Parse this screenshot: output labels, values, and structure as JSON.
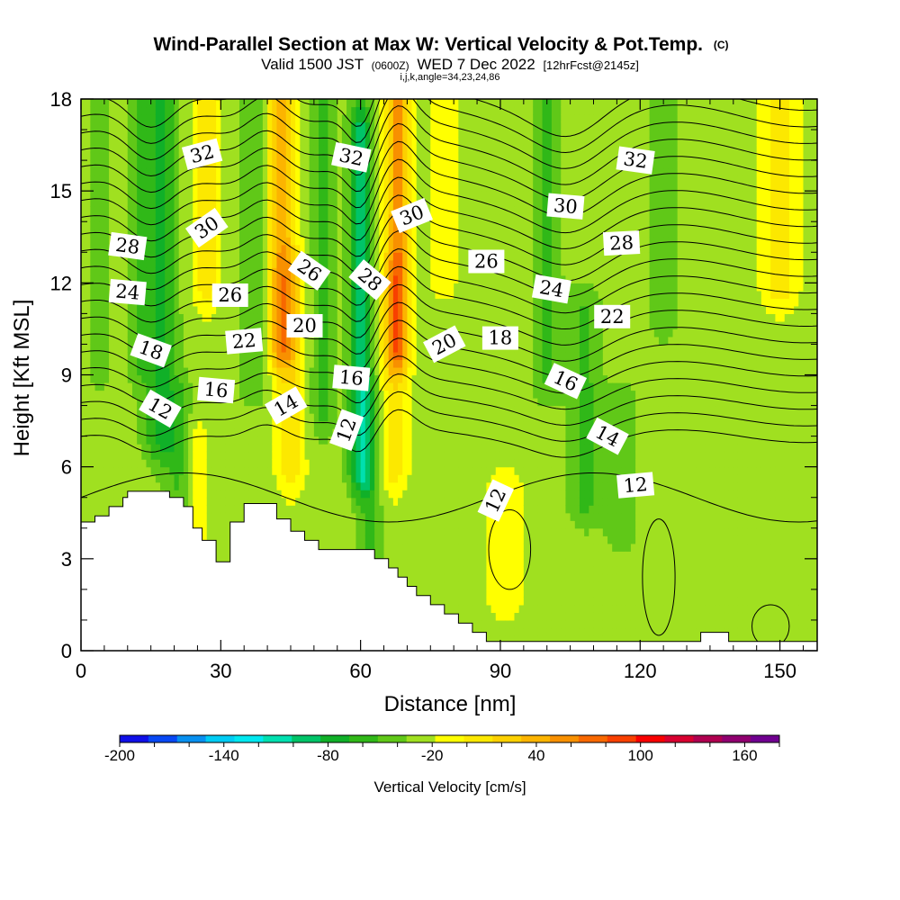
{
  "chart_data": {
    "type": "heatmap",
    "title": "Wind-Parallel Section at Max W: Vertical Velocity & Pot.Temp.",
    "title_mark": "(C)",
    "subtitle": {
      "pre": "Valid 1500 JST",
      "utc": "(0600Z)",
      "post": "WED 7 Dec 2022",
      "fcst": "[12hrFcst@2145z]"
    },
    "indices": "i,j,k,angle=34,23,24,86",
    "xlabel": "Distance [nm]",
    "ylabel": "Height [Kft MSL]",
    "xlim": [
      0,
      158
    ],
    "ylim": [
      0,
      18
    ],
    "xticks": [
      0,
      30,
      60,
      90,
      120,
      150
    ],
    "yticks": [
      0,
      3,
      6,
      9,
      12,
      15,
      18
    ],
    "terrain": [
      [
        0,
        4.2
      ],
      [
        3,
        4.2
      ],
      [
        3,
        4.4
      ],
      [
        6,
        4.4
      ],
      [
        6,
        4.7
      ],
      [
        9,
        4.7
      ],
      [
        9,
        5.0
      ],
      [
        10,
        5.0
      ],
      [
        10,
        5.2
      ],
      [
        19,
        5.2
      ],
      [
        19,
        5.0
      ],
      [
        22,
        5.0
      ],
      [
        22,
        4.7
      ],
      [
        24,
        4.7
      ],
      [
        24,
        4.0
      ],
      [
        26,
        4.0
      ],
      [
        26,
        3.6
      ],
      [
        29,
        3.6
      ],
      [
        29,
        2.9
      ],
      [
        32,
        2.9
      ],
      [
        32,
        4.2
      ],
      [
        35,
        4.2
      ],
      [
        35,
        4.8
      ],
      [
        42,
        4.8
      ],
      [
        42,
        4.3
      ],
      [
        45,
        4.3
      ],
      [
        45,
        3.9
      ],
      [
        48,
        3.9
      ],
      [
        48,
        3.6
      ],
      [
        51,
        3.6
      ],
      [
        51,
        3.3
      ],
      [
        63,
        3.3
      ],
      [
        63,
        3.0
      ],
      [
        66,
        3.0
      ],
      [
        66,
        2.7
      ],
      [
        68,
        2.7
      ],
      [
        68,
        2.4
      ],
      [
        70,
        2.4
      ],
      [
        70,
        2.1
      ],
      [
        72,
        2.1
      ],
      [
        72,
        1.8
      ],
      [
        75,
        1.8
      ],
      [
        75,
        1.5
      ],
      [
        78,
        1.5
      ],
      [
        78,
        1.2
      ],
      [
        81,
        1.2
      ],
      [
        81,
        0.9
      ],
      [
        84,
        0.9
      ],
      [
        84,
        0.6
      ],
      [
        87,
        0.6
      ],
      [
        87,
        0.3
      ],
      [
        133,
        0.3
      ],
      [
        133,
        0.6
      ],
      [
        139,
        0.6
      ],
      [
        139,
        0.3
      ],
      [
        158,
        0.3
      ]
    ],
    "theta_contour_values": [
      12,
      13,
      14,
      15,
      16,
      17,
      18,
      19,
      20,
      21,
      22,
      23,
      24,
      25,
      26,
      27,
      28,
      29,
      30,
      31,
      32,
      33
    ],
    "contour_labels": [
      {
        "x": 26,
        "y": 16.2,
        "text": "32",
        "angle": -15
      },
      {
        "x": 58,
        "y": 16.1,
        "text": "32",
        "angle": 12
      },
      {
        "x": 119,
        "y": 16.0,
        "text": "32",
        "angle": 8
      },
      {
        "x": 27,
        "y": 13.8,
        "text": "30",
        "angle": -35
      },
      {
        "x": 71,
        "y": 14.2,
        "text": "30",
        "angle": -22
      },
      {
        "x": 104,
        "y": 14.5,
        "text": "30",
        "angle": 5
      },
      {
        "x": 116,
        "y": 13.3,
        "text": "28",
        "angle": -3
      },
      {
        "x": 10,
        "y": 13.2,
        "text": "28",
        "angle": 8
      },
      {
        "x": 49,
        "y": 12.4,
        "text": "26",
        "angle": 35
      },
      {
        "x": 62,
        "y": 12.1,
        "text": "28",
        "angle": 40
      },
      {
        "x": 87,
        "y": 12.7,
        "text": "26",
        "angle": 0
      },
      {
        "x": 32,
        "y": 11.6,
        "text": "26",
        "angle": 0
      },
      {
        "x": 10,
        "y": 11.7,
        "text": "24",
        "angle": 5
      },
      {
        "x": 101,
        "y": 11.8,
        "text": "24",
        "angle": 10
      },
      {
        "x": 114,
        "y": 10.9,
        "text": "22",
        "angle": 0
      },
      {
        "x": 35,
        "y": 10.1,
        "text": "22",
        "angle": -5
      },
      {
        "x": 48,
        "y": 10.6,
        "text": "20",
        "angle": 0
      },
      {
        "x": 78,
        "y": 10.0,
        "text": "20",
        "angle": -28
      },
      {
        "x": 90,
        "y": 10.2,
        "text": "18",
        "angle": 0
      },
      {
        "x": 15,
        "y": 9.8,
        "text": "18",
        "angle": 20
      },
      {
        "x": 104,
        "y": 8.8,
        "text": "16",
        "angle": 25
      },
      {
        "x": 58,
        "y": 8.9,
        "text": "16",
        "angle": 5
      },
      {
        "x": 29,
        "y": 8.5,
        "text": "16",
        "angle": 5
      },
      {
        "x": 17,
        "y": 7.9,
        "text": "12",
        "angle": 30
      },
      {
        "x": 44,
        "y": 8.0,
        "text": "14",
        "angle": -30
      },
      {
        "x": 57,
        "y": 7.2,
        "text": "12",
        "angle": -70
      },
      {
        "x": 113,
        "y": 7.0,
        "text": "14",
        "angle": 28
      },
      {
        "x": 119,
        "y": 5.4,
        "text": "12",
        "angle": -5
      },
      {
        "x": 89,
        "y": 4.9,
        "text": "12",
        "angle": -65
      }
    ],
    "colorbar": {
      "label": "Vertical Velocity [cm/s]",
      "min": -200,
      "max": 180,
      "step": 20,
      "ticks": [
        -200,
        -140,
        -80,
        -20,
        40,
        100,
        160
      ],
      "colors": [
        "#1010e8",
        "#0848f4",
        "#0890f0",
        "#00ccf4",
        "#00e8f0",
        "#00e0b0",
        "#00c468",
        "#10b028",
        "#30b818",
        "#60c818",
        "#a0e020",
        "#ffff00",
        "#fce800",
        "#fcd000",
        "#fcb400",
        "#f89000",
        "#f86800",
        "#f84000",
        "#f80000",
        "#d80030",
        "#b00050",
        "#900070",
        "#700090"
      ]
    },
    "w_features": [
      {
        "x": 4,
        "ymin": 9.5,
        "ymax": 18,
        "peak": -25,
        "w": 2.5
      },
      {
        "x": 12,
        "ymin": 9.5,
        "ymax": 18,
        "peak": -25,
        "w": 2.5
      },
      {
        "x": 17,
        "ymin": 7,
        "ymax": 18,
        "peak": -55,
        "w": 3.5
      },
      {
        "x": 21,
        "ymin": 4.5,
        "ymax": 8,
        "peak": -30,
        "w": 3
      },
      {
        "x": 27,
        "ymin": 12,
        "ymax": 18,
        "peak": 40,
        "w": 3
      },
      {
        "x": 25,
        "ymin": 3.5,
        "ymax": 7,
        "peak": 20,
        "w": 2
      },
      {
        "x": 37,
        "ymin": 9,
        "ymax": 18,
        "peak": -30,
        "w": 3
      },
      {
        "x": 43,
        "ymin": 10,
        "ymax": 18,
        "peak": 85,
        "w": 3
      },
      {
        "x": 45,
        "ymin": 6,
        "ymax": 12,
        "peak": 40,
        "w": 3
      },
      {
        "x": 52,
        "ymin": 8,
        "ymax": 18,
        "peak": -40,
        "w": 2.5
      },
      {
        "x": 60,
        "ymin": 6,
        "ymax": 17,
        "peak": -80,
        "w": 2.5
      },
      {
        "x": 62,
        "ymin": 3,
        "ymax": 8,
        "peak": -35,
        "w": 2.5
      },
      {
        "x": 68,
        "ymin": 10,
        "ymax": 18,
        "peak": 100,
        "w": 2.5
      },
      {
        "x": 67,
        "ymin": 6,
        "ymax": 12,
        "peak": 40,
        "w": 3
      },
      {
        "x": 78,
        "ymin": 12,
        "ymax": 18,
        "peak": 15,
        "w": 4
      },
      {
        "x": 100,
        "ymin": 9,
        "ymax": 18,
        "peak": -35,
        "w": 3
      },
      {
        "x": 108,
        "ymin": 5,
        "ymax": 11,
        "peak": -35,
        "w": 3.5
      },
      {
        "x": 116,
        "ymin": 4,
        "ymax": 8,
        "peak": -20,
        "w": 4
      },
      {
        "x": 125,
        "ymin": 11,
        "ymax": 18,
        "peak": -25,
        "w": 3
      },
      {
        "x": 91,
        "ymin": 2,
        "ymax": 5,
        "peak": 30,
        "w": 4
      },
      {
        "x": 150,
        "ymin": 12,
        "ymax": 18,
        "peak": 40,
        "w": 4
      }
    ]
  }
}
